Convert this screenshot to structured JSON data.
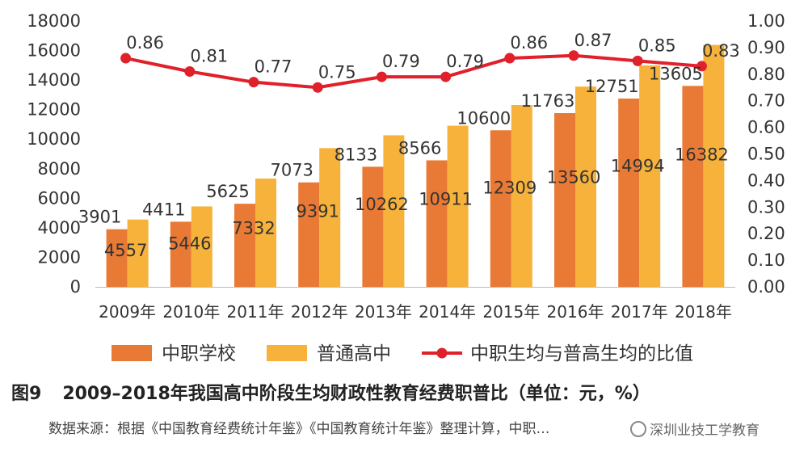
{
  "chart_data": {
    "type": "bar",
    "categories": [
      "2009年",
      "2010年",
      "2011年",
      "2012年",
      "2013年",
      "2014年",
      "2015年",
      "2016年",
      "2017年",
      "2018年"
    ],
    "series": [
      {
        "name": "中职学校",
        "type": "bar",
        "axis": "left",
        "color": "#E87A35",
        "values": [
          3901,
          4411,
          5625,
          7073,
          8133,
          8566,
          10600,
          11763,
          12751,
          13605
        ]
      },
      {
        "name": "普通高中",
        "type": "bar",
        "axis": "left",
        "color": "#F6B23A",
        "values": [
          4557,
          5446,
          7332,
          9391,
          10262,
          10911,
          12309,
          13560,
          14994,
          16382
        ]
      },
      {
        "name": "中职生均与普高生均的比值",
        "type": "line",
        "axis": "right",
        "color": "#E0202A",
        "values": [
          0.86,
          0.81,
          0.77,
          0.75,
          0.79,
          0.79,
          0.86,
          0.87,
          0.85,
          0.83
        ]
      }
    ],
    "y_left": {
      "min": 0,
      "max": 18000,
      "ticks": [
        "0",
        "2000",
        "4000",
        "6000",
        "8000",
        "10000",
        "12000",
        "14000",
        "16000",
        "18000"
      ]
    },
    "y_right": {
      "min": 0,
      "max": 1.0,
      "ticks": [
        "0.00",
        "0.10",
        "0.20",
        "0.30",
        "0.40",
        "0.50",
        "0.60",
        "0.70",
        "0.80",
        "0.90",
        "1.00"
      ]
    },
    "line_labels": [
      "0.86",
      "0.81",
      "0.77",
      "0.75",
      "0.79",
      "0.79",
      "0.86",
      "0.87",
      "0.85",
      "0.83"
    ],
    "grid": false,
    "legend_position": "bottom"
  },
  "caption": {
    "number": "图9",
    "text": "2009–2018年我国高中阶段生均财政性教育经费职普比（单位：元，%）"
  },
  "source": "数据来源：根据《中国教育经费统计年鉴》《中国教育统计年鉴》整理计算，中职…",
  "watermark": "深圳业技工学教育"
}
